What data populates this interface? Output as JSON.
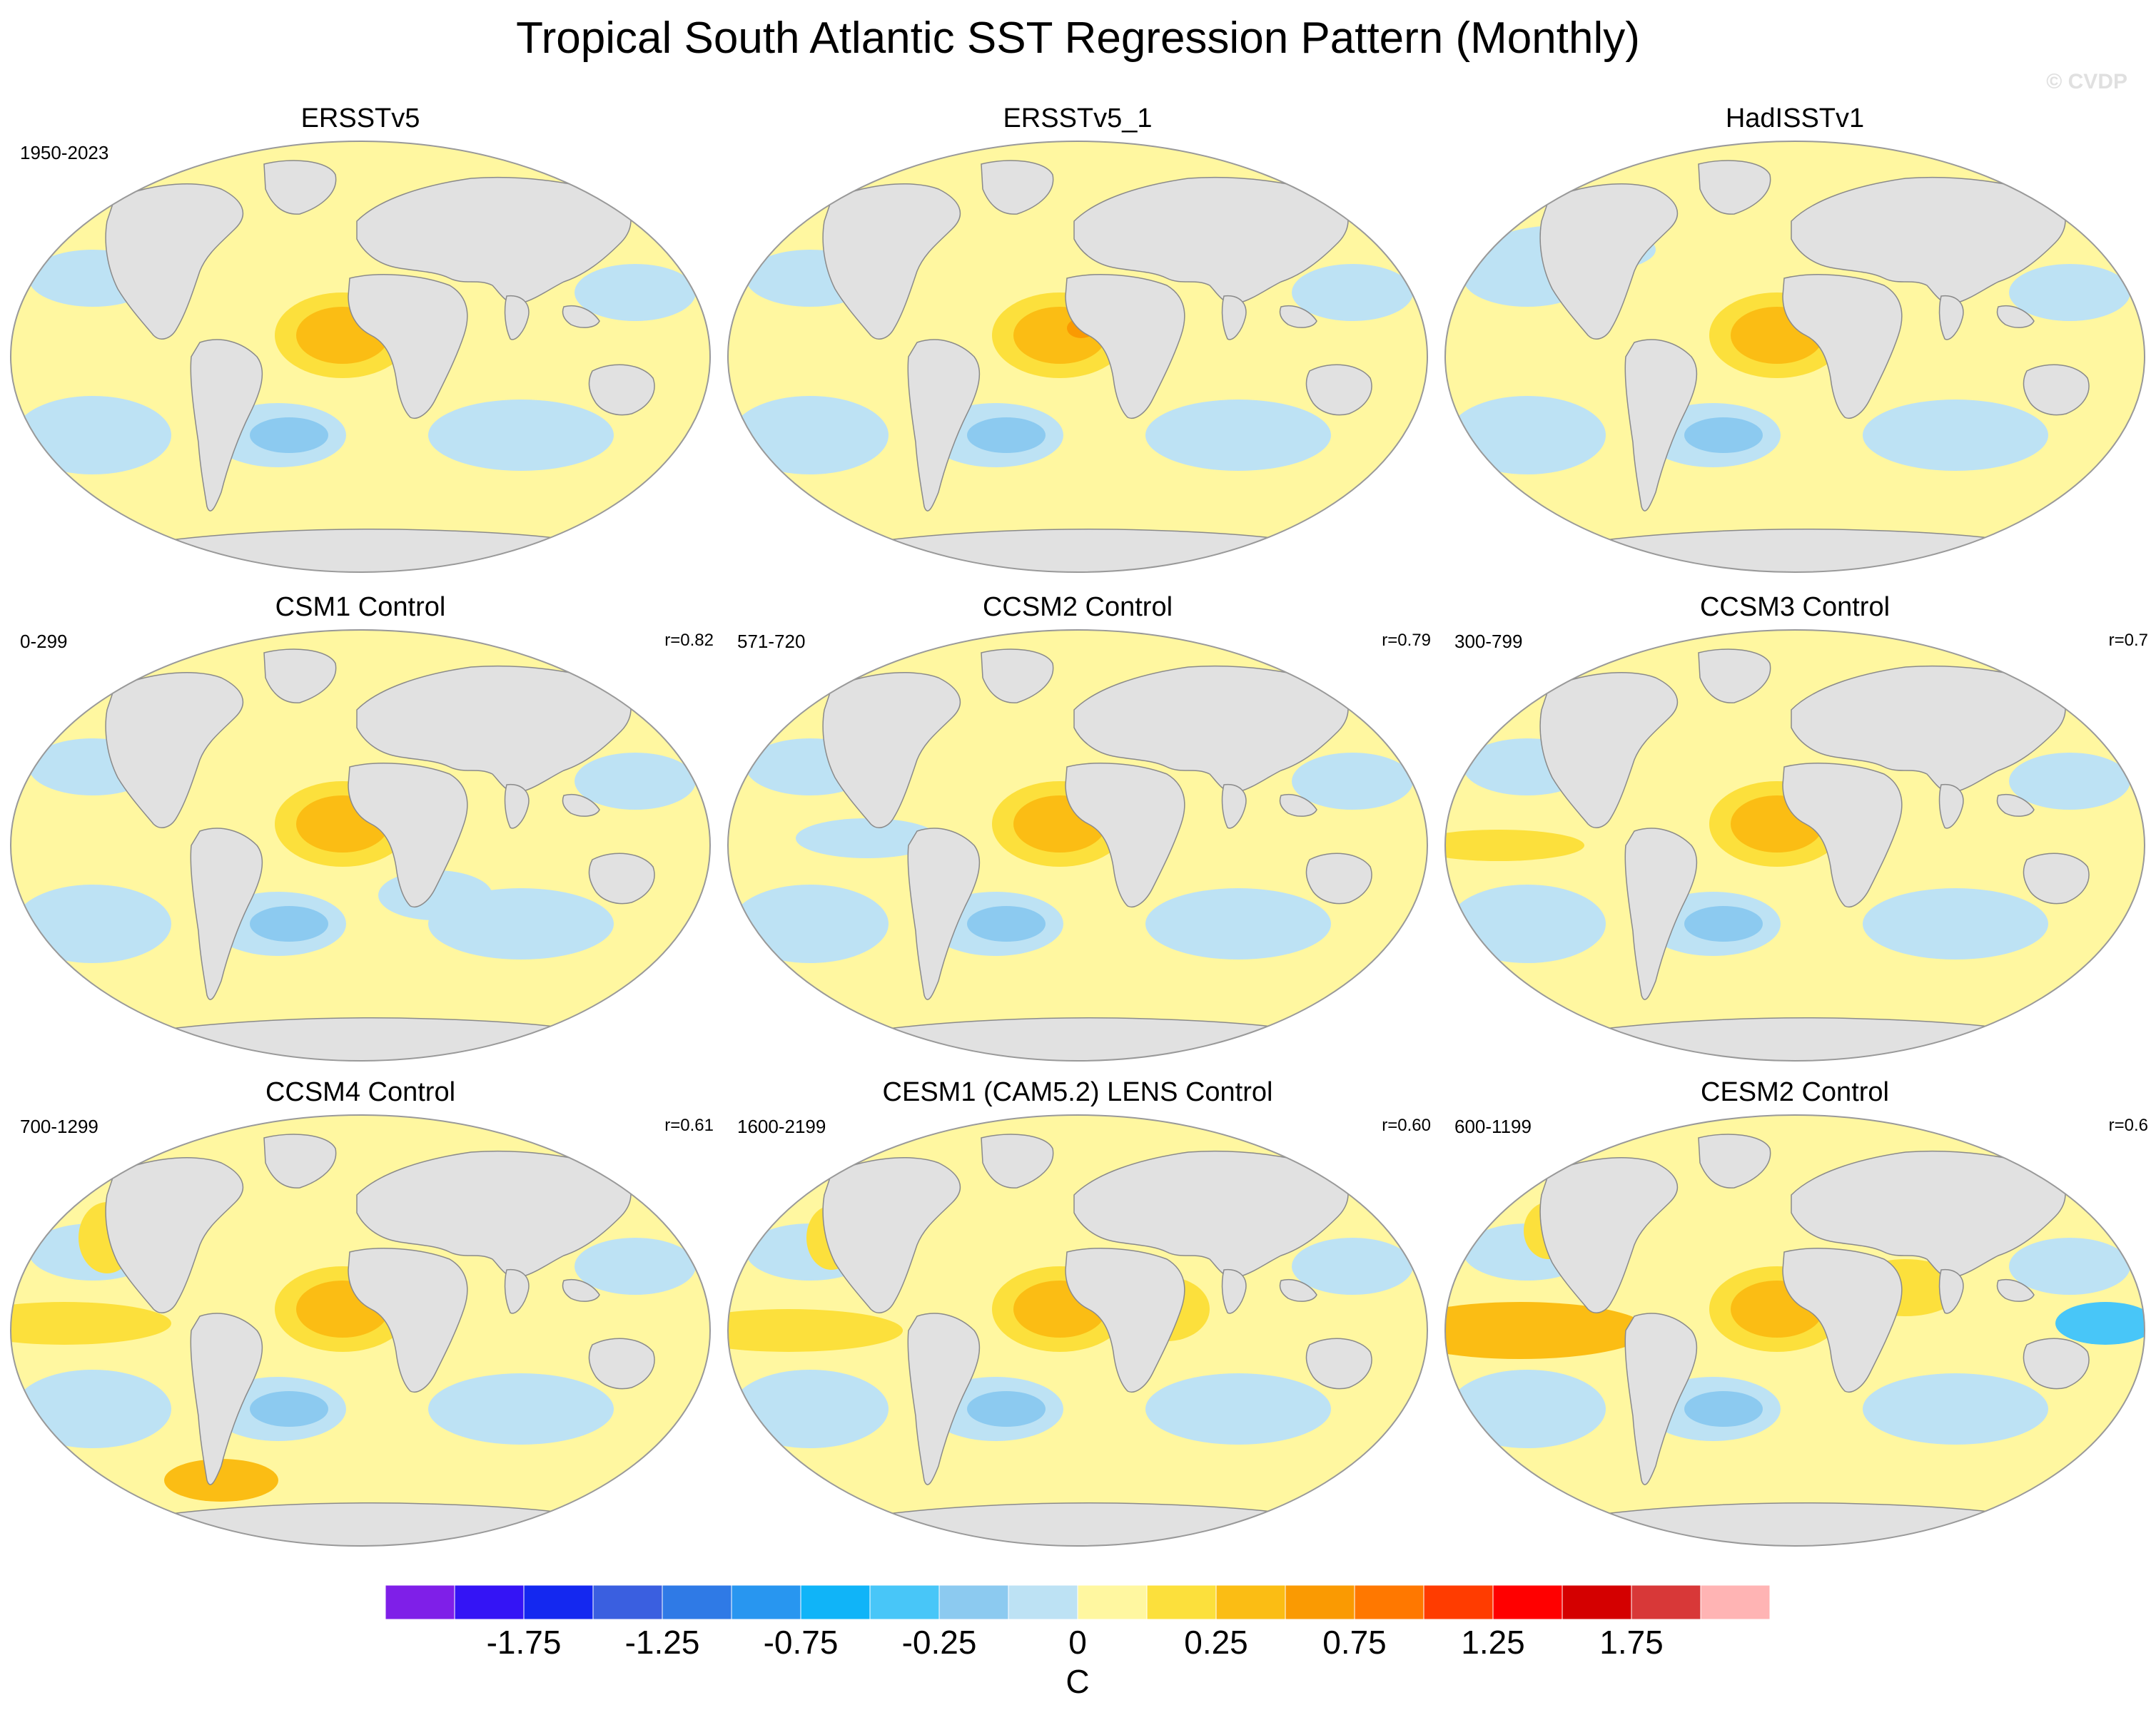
{
  "title": "Tropical South Atlantic SST Regression Pattern (Monthly)",
  "watermark": "© CVDP",
  "panels": [
    {
      "title": "ERSSTv5",
      "period": "1950-2023",
      "corr": "",
      "variant": 0
    },
    {
      "title": "ERSSTv5_1",
      "period": "",
      "corr": "",
      "variant": 1
    },
    {
      "title": "HadISSTv1",
      "period": "",
      "corr": "",
      "variant": 2
    },
    {
      "title": "CSM1 Control",
      "period": "0-299",
      "corr": "r=0.82",
      "variant": 3
    },
    {
      "title": "CCSM2 Control",
      "period": "571-720",
      "corr": "r=0.79",
      "variant": 4
    },
    {
      "title": "CCSM3 Control",
      "period": "300-799",
      "corr": "r=0.7",
      "variant": 5
    },
    {
      "title": "CCSM4 Control",
      "period": "700-1299",
      "corr": "r=0.61",
      "variant": 6
    },
    {
      "title": "CESM1 (CAM5.2) LENS Control",
      "period": "1600-2199",
      "corr": "r=0.60",
      "variant": 7
    },
    {
      "title": "CESM2 Control",
      "period": "600-1199",
      "corr": "r=0.6",
      "variant": 8
    }
  ],
  "colorbar": {
    "colors": [
      "#7f1fe8",
      "#3414f5",
      "#1428f0",
      "#3a5fe0",
      "#2f7ae6",
      "#2896f0",
      "#10b4f8",
      "#48c6f8",
      "#8ccaf0",
      "#bde2f4",
      "#fff7a0",
      "#fce03c",
      "#fbbd14",
      "#fa9a02",
      "#ff7800",
      "#ff3c00",
      "#ff0000",
      "#d40000",
      "#d83838",
      "#ffb4b4"
    ],
    "tick_labels": [
      "-1.75",
      "-1.25",
      "-0.75",
      "-0.25",
      "0",
      "0.25",
      "0.75",
      "1.25",
      "1.75"
    ],
    "units": "C"
  },
  "palette": {
    "land": "#e1e1e1",
    "ocean_base": "#fff7a0",
    "cool": "#bde2f4",
    "cool_strong": "#8ccaf0",
    "cooler": "#48c6f8",
    "warm": "#fce03c",
    "warm_strong": "#fbbd14",
    "hot": "#fa9a02"
  }
}
